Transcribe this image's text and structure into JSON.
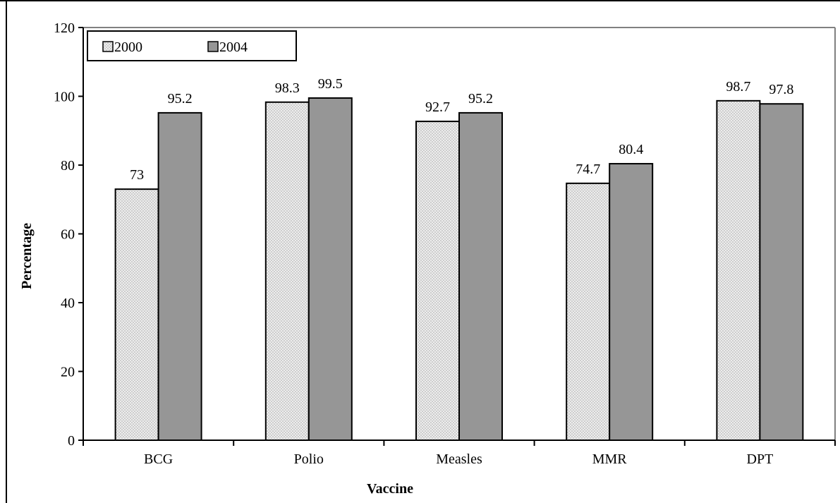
{
  "chart_data": {
    "type": "bar",
    "title": "",
    "xlabel": "Vaccine",
    "ylabel": "Percentage",
    "categories": [
      "BCG",
      "Polio",
      "Measles",
      "MMR",
      "DPT"
    ],
    "series": [
      {
        "name": "2000",
        "values": [
          73,
          98.3,
          92.7,
          74.7,
          98.7
        ],
        "pattern": "dotted-light",
        "color": "#d9d9d9"
      },
      {
        "name": "2004",
        "values": [
          95.2,
          99.5,
          95.2,
          80.4,
          97.8
        ],
        "pattern": "solid",
        "color": "#969696"
      }
    ],
    "ylim": [
      0,
      120
    ],
    "yticks": [
      "0",
      "20",
      "40",
      "60",
      "80",
      "100",
      "120"
    ],
    "grid": false,
    "legend_position": "top-left",
    "data_labels": [
      [
        "73",
        "98.3",
        "92.7",
        "74.7",
        "98.7"
      ],
      [
        "95.2",
        "99.5",
        "95.2",
        "80.4",
        "97.8"
      ]
    ],
    "colors": {
      "border": "#000000",
      "plot_border": "#808080",
      "bar_outline": "#000000"
    }
  }
}
